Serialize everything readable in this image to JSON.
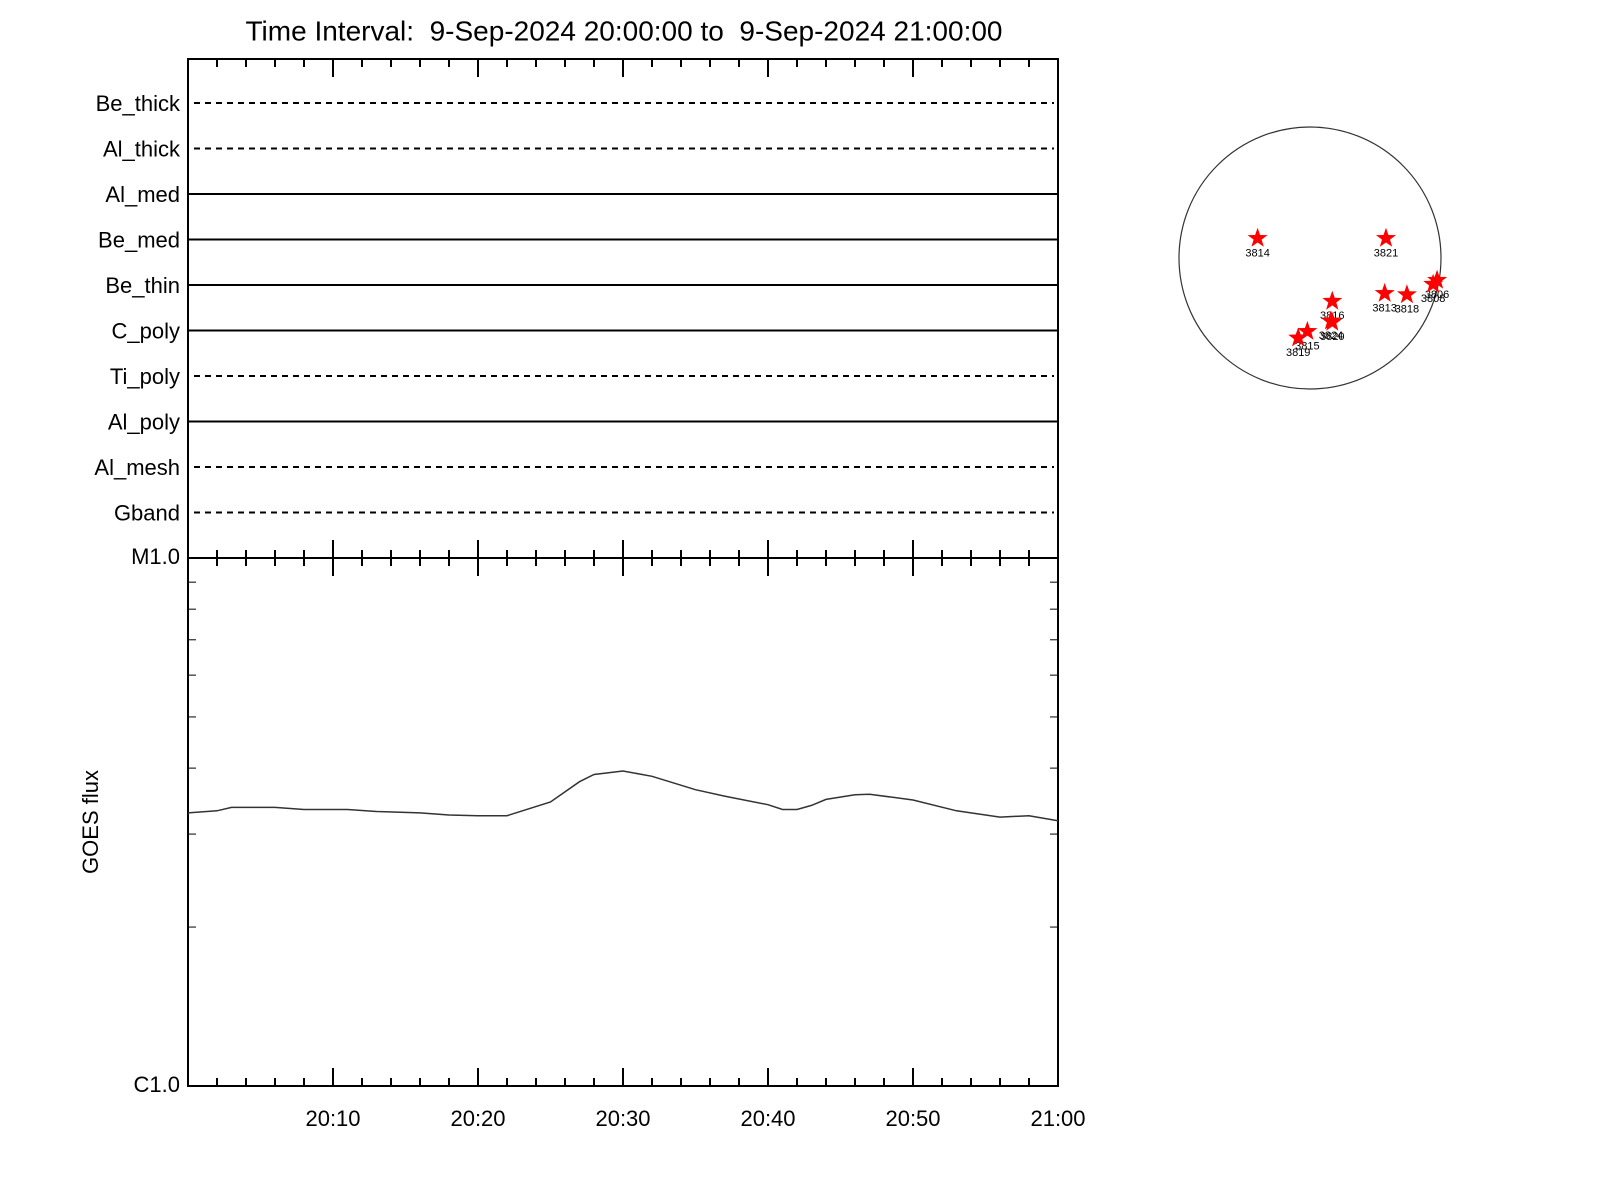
{
  "chart_data": [
    {
      "type": "filters",
      "title": "Time Interval:  9-Sep-2024 20:00:00 to  9-Sep-2024 21:00:00",
      "categories": [
        "Be_thick",
        "Al_thick",
        "Al_med",
        "Be_med",
        "Be_thin",
        "C_poly",
        "Ti_poly",
        "Al_poly",
        "Al_mesh",
        "Gband"
      ],
      "styles": [
        "dashed",
        "dashed",
        "solid",
        "solid",
        "solid",
        "solid",
        "dashed",
        "solid",
        "dashed",
        "dashed"
      ],
      "color": "#000000"
    },
    {
      "type": "line",
      "ylabel": "GOES flux",
      "x": [
        "20:00",
        "20:02",
        "20:03",
        "20:06",
        "20:08",
        "20:11",
        "20:13",
        "20:16",
        "20:18",
        "20:20",
        "20:22",
        "20:25",
        "20:27",
        "20:28",
        "20:30",
        "20:32",
        "20:35",
        "20:37",
        "20:40",
        "20:41",
        "20:42",
        "20:43",
        "20:44",
        "20:46",
        "20:47",
        "20:50",
        "20:53",
        "20:56",
        "20:58",
        "21:00"
      ],
      "values": [
        3.29e-06,
        3.32e-06,
        3.37e-06,
        3.37e-06,
        3.34e-06,
        3.34e-06,
        3.31e-06,
        3.29e-06,
        3.26e-06,
        3.25e-06,
        3.25e-06,
        3.45e-06,
        3.77e-06,
        3.89e-06,
        3.95e-06,
        3.86e-06,
        3.64e-06,
        3.54e-06,
        3.41e-06,
        3.34e-06,
        3.34e-06,
        3.4e-06,
        3.49e-06,
        3.56e-06,
        3.57e-06,
        3.48e-06,
        3.32e-06,
        3.23e-06,
        3.25e-06,
        3.18e-06
      ],
      "color": "#333333",
      "xlim": [
        "20:00",
        "21:00"
      ],
      "xticks": [
        "20:10",
        "20:20",
        "20:30",
        "20:40",
        "20:50",
        "21:00"
      ],
      "minor_xticks": [
        "20:02",
        "20:04",
        "20:06",
        "20:08",
        "20:12",
        "20:14",
        "20:16",
        "20:18",
        "20:22",
        "20:24",
        "20:26",
        "20:28",
        "20:32",
        "20:34",
        "20:36",
        "20:38",
        "20:42",
        "20:44",
        "20:46",
        "20:48",
        "20:52",
        "20:54",
        "20:56",
        "20:58"
      ],
      "ylim": [
        1e-06,
        1e-05
      ],
      "yticks": [
        {
          "value": 1e-06,
          "label": "C1.0"
        },
        {
          "value": 1e-05,
          "label": "M1.0"
        }
      ],
      "minor_yticks": [
        2e-06,
        3e-06,
        4e-06,
        5e-06,
        6e-06,
        7e-06,
        8e-06,
        9e-06
      ],
      "log_y": true
    },
    {
      "type": "scatter",
      "labels": [
        "3814",
        "3821",
        "3816",
        "3813",
        "3818",
        "3806",
        "3808",
        "3820",
        "3824",
        "3815",
        "3819"
      ],
      "x": [
        -0.4,
        0.58,
        0.17,
        0.57,
        0.74,
        0.97,
        0.94,
        0.17,
        0.16,
        -0.02,
        -0.09
      ],
      "y": [
        0.15,
        0.15,
        -0.33,
        -0.27,
        -0.28,
        -0.17,
        -0.2,
        -0.49,
        -0.48,
        -0.56,
        -0.61
      ],
      "color": "#ff0000"
    }
  ]
}
